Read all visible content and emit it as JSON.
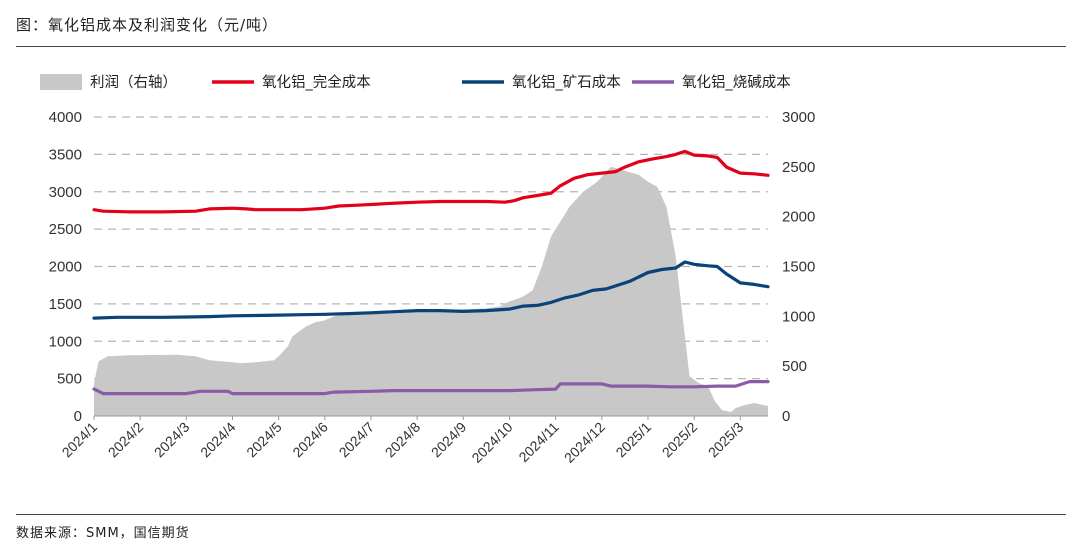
{
  "header": {
    "title": "图：氧化铝成本及利润变化（元/吨）"
  },
  "footer": {
    "source": "数据来源：SMM，国信期货"
  },
  "chart_data": {
    "type": "line",
    "title": "图：氧化铝成本及利润变化（元/吨）",
    "x_ticks": [
      "2024/1",
      "2024/2",
      "2024/3",
      "2024/4",
      "2024/5",
      "2024/6",
      "2024/7",
      "2024/8",
      "2024/9",
      "2024/10",
      "2024/11",
      "2024/12",
      "2025/1",
      "2025/2",
      "2025/3"
    ],
    "x_range": [
      0,
      14.6
    ],
    "y_left": {
      "range": [
        0,
        4000
      ],
      "ticks": [
        "0",
        "500",
        "1000",
        "1500",
        "2000",
        "2500",
        "3000",
        "3500",
        "4000"
      ]
    },
    "y_right": {
      "range": [
        0,
        3000
      ],
      "ticks": [
        "0",
        "500",
        "1000",
        "1500",
        "2000",
        "2500",
        "3000"
      ]
    },
    "grid": "horizontal dashed",
    "legend_position": "top",
    "series": [
      {
        "name": "利润（右轴）",
        "axis": "right",
        "kind": "area",
        "color": "#c8c8c8",
        "points": [
          [
            0,
            330
          ],
          [
            0.1,
            550
          ],
          [
            0.3,
            600
          ],
          [
            0.8,
            610
          ],
          [
            1.8,
            615
          ],
          [
            2.2,
            600
          ],
          [
            2.5,
            560
          ],
          [
            3.0,
            540
          ],
          [
            3.2,
            530
          ],
          [
            3.5,
            540
          ],
          [
            3.9,
            560
          ],
          [
            4.0,
            600
          ],
          [
            4.2,
            700
          ],
          [
            4.3,
            800
          ],
          [
            4.6,
            900
          ],
          [
            4.8,
            940
          ],
          [
            5.0,
            960
          ],
          [
            5.2,
            1000
          ],
          [
            5.5,
            1020
          ],
          [
            5.6,
            1040
          ],
          [
            5.8,
            1050
          ],
          [
            6.0,
            1050
          ],
          [
            6.5,
            1055
          ],
          [
            7.0,
            1060
          ],
          [
            7.5,
            1060
          ],
          [
            8.0,
            1070
          ],
          [
            8.5,
            1080
          ],
          [
            8.8,
            1100
          ],
          [
            9.0,
            1150
          ],
          [
            9.2,
            1180
          ],
          [
            9.3,
            1200
          ],
          [
            9.5,
            1260
          ],
          [
            9.7,
            1500
          ],
          [
            9.9,
            1800
          ],
          [
            10.3,
            2100
          ],
          [
            10.6,
            2250
          ],
          [
            10.9,
            2350
          ],
          [
            11.1,
            2450
          ],
          [
            11.2,
            2500
          ],
          [
            11.5,
            2460
          ],
          [
            11.8,
            2420
          ],
          [
            12.0,
            2350
          ],
          [
            12.2,
            2300
          ],
          [
            12.4,
            2100
          ],
          [
            12.6,
            1600
          ],
          [
            12.8,
            800
          ],
          [
            12.9,
            400
          ],
          [
            13.1,
            330
          ],
          [
            13.3,
            300
          ],
          [
            13.45,
            150
          ],
          [
            13.6,
            60
          ],
          [
            13.8,
            40
          ],
          [
            13.9,
            80
          ],
          [
            14.1,
            110
          ],
          [
            14.3,
            130
          ],
          [
            14.6,
            100
          ]
        ]
      },
      {
        "name": "氧化铝_完全成本",
        "axis": "left",
        "kind": "line",
        "color": "#e3001b",
        "points": [
          [
            0,
            2760
          ],
          [
            0.2,
            2740
          ],
          [
            0.8,
            2730
          ],
          [
            1.5,
            2730
          ],
          [
            2.2,
            2740
          ],
          [
            2.5,
            2770
          ],
          [
            3.0,
            2780
          ],
          [
            3.3,
            2770
          ],
          [
            3.5,
            2760
          ],
          [
            4.0,
            2760
          ],
          [
            4.5,
            2760
          ],
          [
            5.0,
            2780
          ],
          [
            5.3,
            2810
          ],
          [
            5.7,
            2820
          ],
          [
            6.0,
            2830
          ],
          [
            6.3,
            2840
          ],
          [
            6.6,
            2850
          ],
          [
            7.0,
            2860
          ],
          [
            7.5,
            2870
          ],
          [
            8.0,
            2870
          ],
          [
            8.5,
            2870
          ],
          [
            8.9,
            2860
          ],
          [
            9.1,
            2880
          ],
          [
            9.3,
            2920
          ],
          [
            9.6,
            2950
          ],
          [
            9.9,
            2980
          ],
          [
            10.1,
            3080
          ],
          [
            10.4,
            3180
          ],
          [
            10.7,
            3230
          ],
          [
            11.0,
            3250
          ],
          [
            11.3,
            3270
          ],
          [
            11.5,
            3330
          ],
          [
            11.8,
            3400
          ],
          [
            12.1,
            3440
          ],
          [
            12.4,
            3470
          ],
          [
            12.6,
            3500
          ],
          [
            12.8,
            3540
          ],
          [
            13.0,
            3490
          ],
          [
            13.3,
            3480
          ],
          [
            13.5,
            3460
          ],
          [
            13.7,
            3330
          ],
          [
            14.0,
            3250
          ],
          [
            14.3,
            3240
          ],
          [
            14.6,
            3220
          ]
        ]
      },
      {
        "name": "氧化铝_矿石成本",
        "axis": "left",
        "kind": "line",
        "color": "#0a4377",
        "points": [
          [
            0,
            1310
          ],
          [
            0.5,
            1320
          ],
          [
            1.0,
            1320
          ],
          [
            1.5,
            1320
          ],
          [
            2.0,
            1325
          ],
          [
            2.5,
            1330
          ],
          [
            3.0,
            1340
          ],
          [
            3.5,
            1345
          ],
          [
            4.0,
            1350
          ],
          [
            4.5,
            1355
          ],
          [
            5.0,
            1360
          ],
          [
            5.5,
            1370
          ],
          [
            6.0,
            1380
          ],
          [
            6.5,
            1395
          ],
          [
            7.0,
            1410
          ],
          [
            7.5,
            1410
          ],
          [
            8.0,
            1400
          ],
          [
            8.5,
            1410
          ],
          [
            9.0,
            1430
          ],
          [
            9.3,
            1470
          ],
          [
            9.6,
            1480
          ],
          [
            9.9,
            1520
          ],
          [
            10.2,
            1580
          ],
          [
            10.5,
            1620
          ],
          [
            10.8,
            1680
          ],
          [
            11.1,
            1700
          ],
          [
            11.4,
            1760
          ],
          [
            11.6,
            1800
          ],
          [
            11.8,
            1860
          ],
          [
            12.0,
            1920
          ],
          [
            12.3,
            1960
          ],
          [
            12.6,
            1980
          ],
          [
            12.8,
            2060
          ],
          [
            13.0,
            2030
          ],
          [
            13.3,
            2010
          ],
          [
            13.5,
            2000
          ],
          [
            13.7,
            1900
          ],
          [
            14.0,
            1780
          ],
          [
            14.3,
            1760
          ],
          [
            14.6,
            1730
          ]
        ]
      },
      {
        "name": "氧化铝_烧碱成本",
        "axis": "left",
        "kind": "line",
        "color": "#8a5ca8",
        "points": [
          [
            0,
            360
          ],
          [
            0.2,
            300
          ],
          [
            0.5,
            300
          ],
          [
            1.5,
            300
          ],
          [
            2.0,
            300
          ],
          [
            2.3,
            330
          ],
          [
            2.9,
            330
          ],
          [
            3.0,
            300
          ],
          [
            4.0,
            300
          ],
          [
            5.0,
            300
          ],
          [
            5.2,
            320
          ],
          [
            6.0,
            330
          ],
          [
            6.5,
            340
          ],
          [
            7.0,
            340
          ],
          [
            8.0,
            340
          ],
          [
            9.0,
            340
          ],
          [
            9.5,
            350
          ],
          [
            10.0,
            360
          ],
          [
            10.1,
            430
          ],
          [
            10.4,
            430
          ],
          [
            11.0,
            430
          ],
          [
            11.2,
            400
          ],
          [
            11.5,
            400
          ],
          [
            12.0,
            400
          ],
          [
            12.5,
            390
          ],
          [
            13.0,
            390
          ],
          [
            13.5,
            400
          ],
          [
            13.9,
            400
          ],
          [
            14.1,
            440
          ],
          [
            14.2,
            460
          ],
          [
            14.6,
            460
          ]
        ]
      }
    ]
  }
}
